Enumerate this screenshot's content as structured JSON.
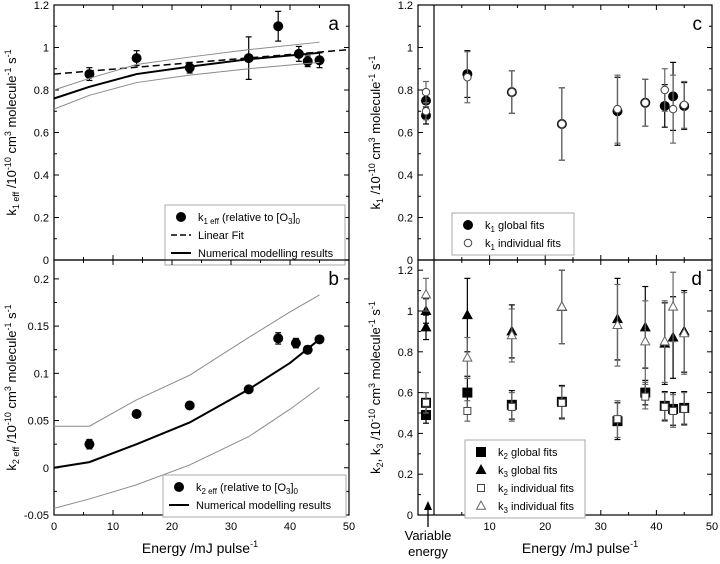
{
  "chart_data": [
    {
      "id": "a",
      "type": "scatter",
      "panel_label": "a",
      "xlabel": "",
      "ylabel": {
        "main": "k",
        "sub": "1 eff",
        "rest": " /10",
        "exp1": "-10",
        "mid": " cm",
        "exp2": "3",
        "mid2": " molecule",
        "exp3": "-1",
        "end": " s",
        "exp4": "-1"
      },
      "xlim": [
        0,
        50
      ],
      "ylim": [
        0,
        1.2
      ],
      "xticks": [
        0,
        10,
        20,
        30,
        40,
        50
      ],
      "xtick_labels_visible": false,
      "yticks": [
        0,
        0.2,
        0.4,
        0.6,
        0.8,
        1.0,
        1.2
      ],
      "ytick_labels": [
        "0",
        "0.2",
        "0.4",
        "0.6",
        "0.8",
        "1",
        "1.2"
      ],
      "series": [
        {
          "name": "k1 eff (relative to [O3]0)",
          "style": "points",
          "marker": "filled-circle",
          "points": [
            [
              6,
              0.875,
              0.03
            ],
            [
              14,
              0.95,
              0.035
            ],
            [
              23,
              0.905,
              0.025
            ],
            [
              33,
              0.95,
              0.1
            ],
            [
              38,
              1.1,
              0.07
            ],
            [
              41.5,
              0.97,
              0.035
            ],
            [
              43,
              0.935,
              0.025
            ],
            [
              45,
              0.94,
              0.035
            ]
          ]
        },
        {
          "name": "Linear Fit",
          "style": "dashed",
          "points": [
            [
              0,
              0.875
            ],
            [
              50,
              0.99
            ]
          ]
        },
        {
          "name": "Numerical modelling results",
          "style": "solid",
          "points": [
            [
              0,
              0.76
            ],
            [
              6,
              0.815
            ],
            [
              14,
              0.875
            ],
            [
              23,
              0.91
            ],
            [
              33,
              0.945
            ],
            [
              45,
              0.975
            ]
          ]
        },
        {
          "name": "upper bound",
          "style": "thin-gray",
          "points": [
            [
              0,
              0.8
            ],
            [
              6,
              0.855
            ],
            [
              14,
              0.92
            ],
            [
              23,
              0.955
            ],
            [
              33,
              0.99
            ],
            [
              45,
              1.025
            ]
          ]
        },
        {
          "name": "lower bound",
          "style": "thin-gray",
          "points": [
            [
              0,
              0.71
            ],
            [
              6,
              0.775
            ],
            [
              14,
              0.835
            ],
            [
              23,
              0.87
            ],
            [
              33,
              0.9
            ],
            [
              45,
              0.93
            ]
          ]
        }
      ],
      "legend": [
        {
          "marker": "filled-circle",
          "label": "k",
          "sub": "1 eff",
          "rest": " (relative to [O",
          "sub2": "3",
          "end": "]",
          "sub3": "0"
        },
        {
          "marker": "dash",
          "label": "Linear Fit"
        },
        {
          "marker": "solid",
          "label": "Numerical modelling results"
        }
      ]
    },
    {
      "id": "b",
      "type": "scatter",
      "panel_label": "b",
      "xlabel": "Energy /mJ pulse-1",
      "ylabel": {
        "main": "k",
        "sub": "2 eff",
        "rest": " /10",
        "exp1": "-10",
        "mid": " cm",
        "exp2": "3",
        "mid2": " molecule",
        "exp3": "-1",
        "end": " s",
        "exp4": "-1"
      },
      "xlim": [
        0,
        50
      ],
      "ylim": [
        -0.05,
        0.22
      ],
      "xticks": [
        0,
        10,
        20,
        30,
        40,
        50
      ],
      "xtick_labels": [
        "0",
        "10",
        "20",
        "30",
        "40",
        "50"
      ],
      "yticks": [
        -0.05,
        0,
        0.05,
        0.1,
        0.15,
        0.2
      ],
      "ytick_labels": [
        "-0.05",
        "0",
        "0.05",
        "0.1",
        "0.15",
        "0.2"
      ],
      "series": [
        {
          "name": "k2 eff (relative to [O3]0)",
          "style": "points",
          "marker": "filled-circle",
          "points": [
            [
              6,
              0.025,
              0.005
            ],
            [
              14,
              0.057,
              0.0
            ],
            [
              23,
              0.066,
              0.0
            ],
            [
              33,
              0.083,
              0.0
            ],
            [
              38,
              0.137,
              0.006
            ],
            [
              41,
              0.132,
              0.005
            ],
            [
              43,
              0.125,
              0.004
            ],
            [
              45,
              0.136,
              0.0
            ]
          ]
        },
        {
          "name": "Numerical modelling results",
          "style": "solid",
          "points": [
            [
              0,
              0.0
            ],
            [
              6,
              0.006
            ],
            [
              14,
              0.025
            ],
            [
              23,
              0.048
            ],
            [
              33,
              0.083
            ],
            [
              40,
              0.111
            ],
            [
              45,
              0.136
            ]
          ]
        },
        {
          "name": "upper bound",
          "style": "thin-gray",
          "points": [
            [
              0,
              0.044
            ],
            [
              6,
              0.044
            ],
            [
              14,
              0.072
            ],
            [
              23,
              0.098
            ],
            [
              33,
              0.138
            ],
            [
              40,
              0.165
            ],
            [
              45,
              0.183
            ]
          ]
        },
        {
          "name": "lower bound",
          "style": "thin-gray",
          "points": [
            [
              0,
              -0.043
            ],
            [
              6,
              -0.033
            ],
            [
              14,
              -0.018
            ],
            [
              23,
              0.003
            ],
            [
              33,
              0.033
            ],
            [
              40,
              0.062
            ],
            [
              45,
              0.085
            ]
          ]
        }
      ],
      "legend": [
        {
          "marker": "filled-circle",
          "label": "k",
          "sub": "2 eff",
          "rest": " (relative to [O",
          "sub2": "3",
          "end": "]",
          "sub3": "0"
        },
        {
          "marker": "solid",
          "label": "Numerical modelling results"
        }
      ]
    },
    {
      "id": "c",
      "type": "scatter",
      "panel_label": "c",
      "xlabel": "",
      "ylabel": {
        "main": "k",
        "sub": "1",
        "rest": " /10",
        "exp1": "-10",
        "mid": " cm",
        "exp2": "3",
        "mid2": " molecule",
        "exp3": "-1",
        "end": " s",
        "exp4": "-1"
      },
      "xlim": [
        0,
        50
      ],
      "ylim": [
        0,
        1.2
      ],
      "xticks": [
        10,
        20,
        30,
        40,
        50
      ],
      "xtick_labels_visible": false,
      "yticks": [
        0,
        0.2,
        0.4,
        0.6,
        0.8,
        1.0,
        1.2
      ],
      "ytick_labels": [
        "0",
        "0.2",
        "0.4",
        "0.6",
        "0.8",
        "1",
        "1.2"
      ],
      "series": [
        {
          "name": "k1 global fits",
          "style": "points",
          "marker": "filled-circle",
          "points": [
            [
              6,
              0.875,
              0.11
            ],
            [
              14,
              0.79,
              0.1
            ],
            [
              23,
              0.64,
              0.17
            ],
            [
              33,
              0.7,
              0.16
            ],
            [
              38,
              0.74,
              0.11
            ],
            [
              41.5,
              0.725,
              0.1
            ],
            [
              43,
              0.77,
              0.16
            ],
            [
              45,
              0.725,
              0.11
            ]
          ]
        },
        {
          "name": "k1 individual fits",
          "style": "points",
          "marker": "open-circle",
          "points": [
            [
              6,
              0.86,
              0.12
            ],
            [
              14,
              0.79,
              0.1
            ],
            [
              23,
              0.64,
              0.17
            ],
            [
              33,
              0.71,
              0.16
            ],
            [
              38,
              0.74,
              0.11
            ],
            [
              41.5,
              0.8,
              0.1
            ],
            [
              43,
              0.71,
              0.16
            ],
            [
              45,
              0.73,
              0.11
            ]
          ]
        },
        {
          "name": "variable energy k1 global",
          "style": "points",
          "marker": "filled-circle",
          "strip": true,
          "points": [
            [
              0.5,
              0.75,
              0.05
            ],
            [
              0.5,
              0.68,
              0.04
            ]
          ]
        },
        {
          "name": "variable energy k1 individual",
          "style": "points",
          "marker": "open-circle",
          "strip": true,
          "points": [
            [
              0.5,
              0.79,
              0.05
            ],
            [
              0.5,
              0.7,
              0.04
            ]
          ]
        }
      ],
      "legend": [
        {
          "marker": "filled-circle",
          "label": "k",
          "sub": "1",
          "rest": " global fits"
        },
        {
          "marker": "open-circle",
          "label": "k",
          "sub": "1",
          "rest": " individual fits"
        }
      ]
    },
    {
      "id": "d",
      "type": "scatter",
      "panel_label": "d",
      "xlabel": "Energy /mJ pulse-1",
      "ylabel": {
        "main": "k",
        "sub": "2",
        "rest": ", k",
        "sub2": "3",
        "rest2": " /10",
        "exp1": "-10",
        "mid": " cm",
        "exp2": "3",
        "mid2": " molecule",
        "exp3": "-1",
        "end": " s",
        "exp4": "-1"
      },
      "xlim": [
        0,
        50
      ],
      "ylim": [
        0,
        1.25
      ],
      "xticks": [
        10,
        20,
        30,
        40,
        50
      ],
      "xtick_labels": [
        "10",
        "20",
        "30",
        "40",
        "50"
      ],
      "yticks": [
        0,
        0.2,
        0.4,
        0.6,
        0.8,
        1.0,
        1.2
      ],
      "ytick_labels": [
        "0",
        "0.2",
        "0.4",
        "0.6",
        "0.8",
        "1",
        "1.2"
      ],
      "series": [
        {
          "name": "k2 global fits",
          "style": "points",
          "marker": "filled-square",
          "points": [
            [
              6,
              0.6,
              0.08
            ],
            [
              14,
              0.54,
              0.07
            ],
            [
              23,
              0.555,
              0.08
            ],
            [
              33,
              0.46,
              0.09
            ],
            [
              38,
              0.6,
              0.06
            ],
            [
              41.5,
              0.535,
              0.07
            ],
            [
              43,
              0.52,
              0.08
            ],
            [
              45,
              0.525,
              0.08
            ]
          ]
        },
        {
          "name": "k3 global fits",
          "style": "points",
          "marker": "filled-triangle",
          "points": [
            [
              6,
              0.98,
              0.18
            ],
            [
              14,
              0.9,
              0.13
            ],
            [
              23,
              1.02,
              0.18
            ],
            [
              33,
              0.96,
              0.2
            ],
            [
              38,
              0.92,
              0.2
            ],
            [
              41.5,
              0.84,
              0.2
            ],
            [
              43,
              0.87,
              0.2
            ],
            [
              45,
              0.9,
              0.2
            ]
          ]
        },
        {
          "name": "k2 individual fits",
          "style": "points",
          "marker": "open-square",
          "points": [
            [
              6,
              0.51,
              0.05
            ],
            [
              14,
              0.53,
              0.07
            ],
            [
              23,
              0.55,
              0.08
            ],
            [
              33,
              0.47,
              0.09
            ],
            [
              38,
              0.58,
              0.06
            ],
            [
              41.5,
              0.53,
              0.07
            ],
            [
              43,
              0.51,
              0.08
            ],
            [
              45,
              0.52,
              0.08
            ]
          ]
        },
        {
          "name": "k3 individual fits",
          "style": "points",
          "marker": "open-triangle",
          "points": [
            [
              6,
              0.77,
              0.1
            ],
            [
              14,
              0.88,
              0.13
            ],
            [
              23,
              1.02,
              0.18
            ],
            [
              33,
              0.93,
              0.2
            ],
            [
              38,
              0.85,
              0.2
            ],
            [
              41.5,
              0.85,
              0.2
            ],
            [
              43,
              1.02,
              0.17
            ],
            [
              45,
              0.89,
              0.2
            ]
          ]
        },
        {
          "name": "variable energy strip",
          "style": "points",
          "marker": "filled-triangle",
          "strip": true,
          "points": [
            [
              0.5,
              1.0,
              0.06
            ],
            [
              0.5,
              0.92,
              0.06
            ]
          ]
        },
        {
          "name": "variable energy strip sq",
          "style": "points",
          "marker": "filled-square",
          "strip": true,
          "points": [
            [
              0.5,
              0.49,
              0.04
            ],
            [
              0.5,
              0.55,
              0.05
            ]
          ]
        },
        {
          "name": "variable energy strip open",
          "style": "points",
          "marker": "open-triangle",
          "strip": true,
          "points": [
            [
              0.5,
              1.08,
              0.08
            ]
          ]
        },
        {
          "name": "variable energy strip open sq",
          "style": "points",
          "marker": "open-square",
          "strip": true,
          "points": [
            [
              0.5,
              0.55,
              0.05
            ]
          ]
        }
      ],
      "legend": [
        {
          "marker": "filled-square",
          "label": "k",
          "sub": "2",
          "rest": " global fits"
        },
        {
          "marker": "filled-triangle",
          "label": "k",
          "sub": "3",
          "rest": " global fits"
        },
        {
          "marker": "open-square",
          "label": "k",
          "sub": "2",
          "rest": " individual fits"
        },
        {
          "marker": "open-triangle",
          "label": "k",
          "sub": "3",
          "rest": " individual fits"
        }
      ]
    }
  ],
  "labels": {
    "energy_left": "Energy /mJ pulse",
    "energy_right": "Energy /mJ pulse",
    "energy_exp": "-1",
    "variable_energy_line1": "Variable",
    "variable_energy_line2": "energy"
  }
}
